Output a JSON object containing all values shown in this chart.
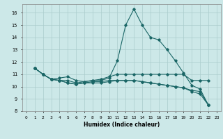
{
  "xlabel": "Humidex (Indice chaleur)",
  "background_color": "#cce8e8",
  "grid_color": "#aacccc",
  "line_color": "#1a6666",
  "xlim": [
    -0.5,
    23.5
  ],
  "ylim": [
    8,
    16.7
  ],
  "xtick_labels": [
    "0",
    "1",
    "2",
    "3",
    "4",
    "5",
    "6",
    "7",
    "8",
    "9",
    "10",
    "11",
    "12",
    "13",
    "14",
    "15",
    "16",
    "17",
    "18",
    "19",
    "20",
    "21",
    "22",
    "23"
  ],
  "ytick_labels": [
    "8",
    "9",
    "10",
    "11",
    "12",
    "13",
    "14",
    "15",
    "16"
  ],
  "series": [
    [
      11.5,
      11.0,
      10.6,
      10.5,
      10.5,
      10.3,
      10.4,
      10.5,
      10.5,
      10.7,
      12.1,
      15.0,
      16.3,
      15.0,
      14.0,
      13.8,
      13.0,
      12.1,
      11.1,
      10.1,
      9.8,
      8.5
    ],
    [
      11.5,
      11.0,
      10.6,
      10.7,
      10.8,
      10.5,
      10.4,
      10.5,
      10.6,
      10.8,
      11.0,
      11.0,
      11.0,
      11.0,
      11.0,
      11.0,
      11.0,
      11.0,
      11.0,
      10.5,
      10.5,
      10.5
    ],
    [
      11.5,
      11.0,
      10.6,
      10.5,
      10.3,
      10.2,
      10.3,
      10.4,
      10.4,
      10.5,
      10.5,
      10.5,
      10.5,
      10.4,
      10.3,
      10.2,
      10.1,
      10.0,
      9.9,
      9.7,
      9.6,
      8.5
    ],
    [
      11.5,
      11.0,
      10.6,
      10.5,
      10.3,
      10.2,
      10.3,
      10.3,
      10.3,
      10.4,
      10.5,
      10.5,
      10.5,
      10.4,
      10.3,
      10.2,
      10.1,
      10.0,
      9.9,
      9.6,
      9.4,
      8.5
    ]
  ],
  "x_start": 1
}
